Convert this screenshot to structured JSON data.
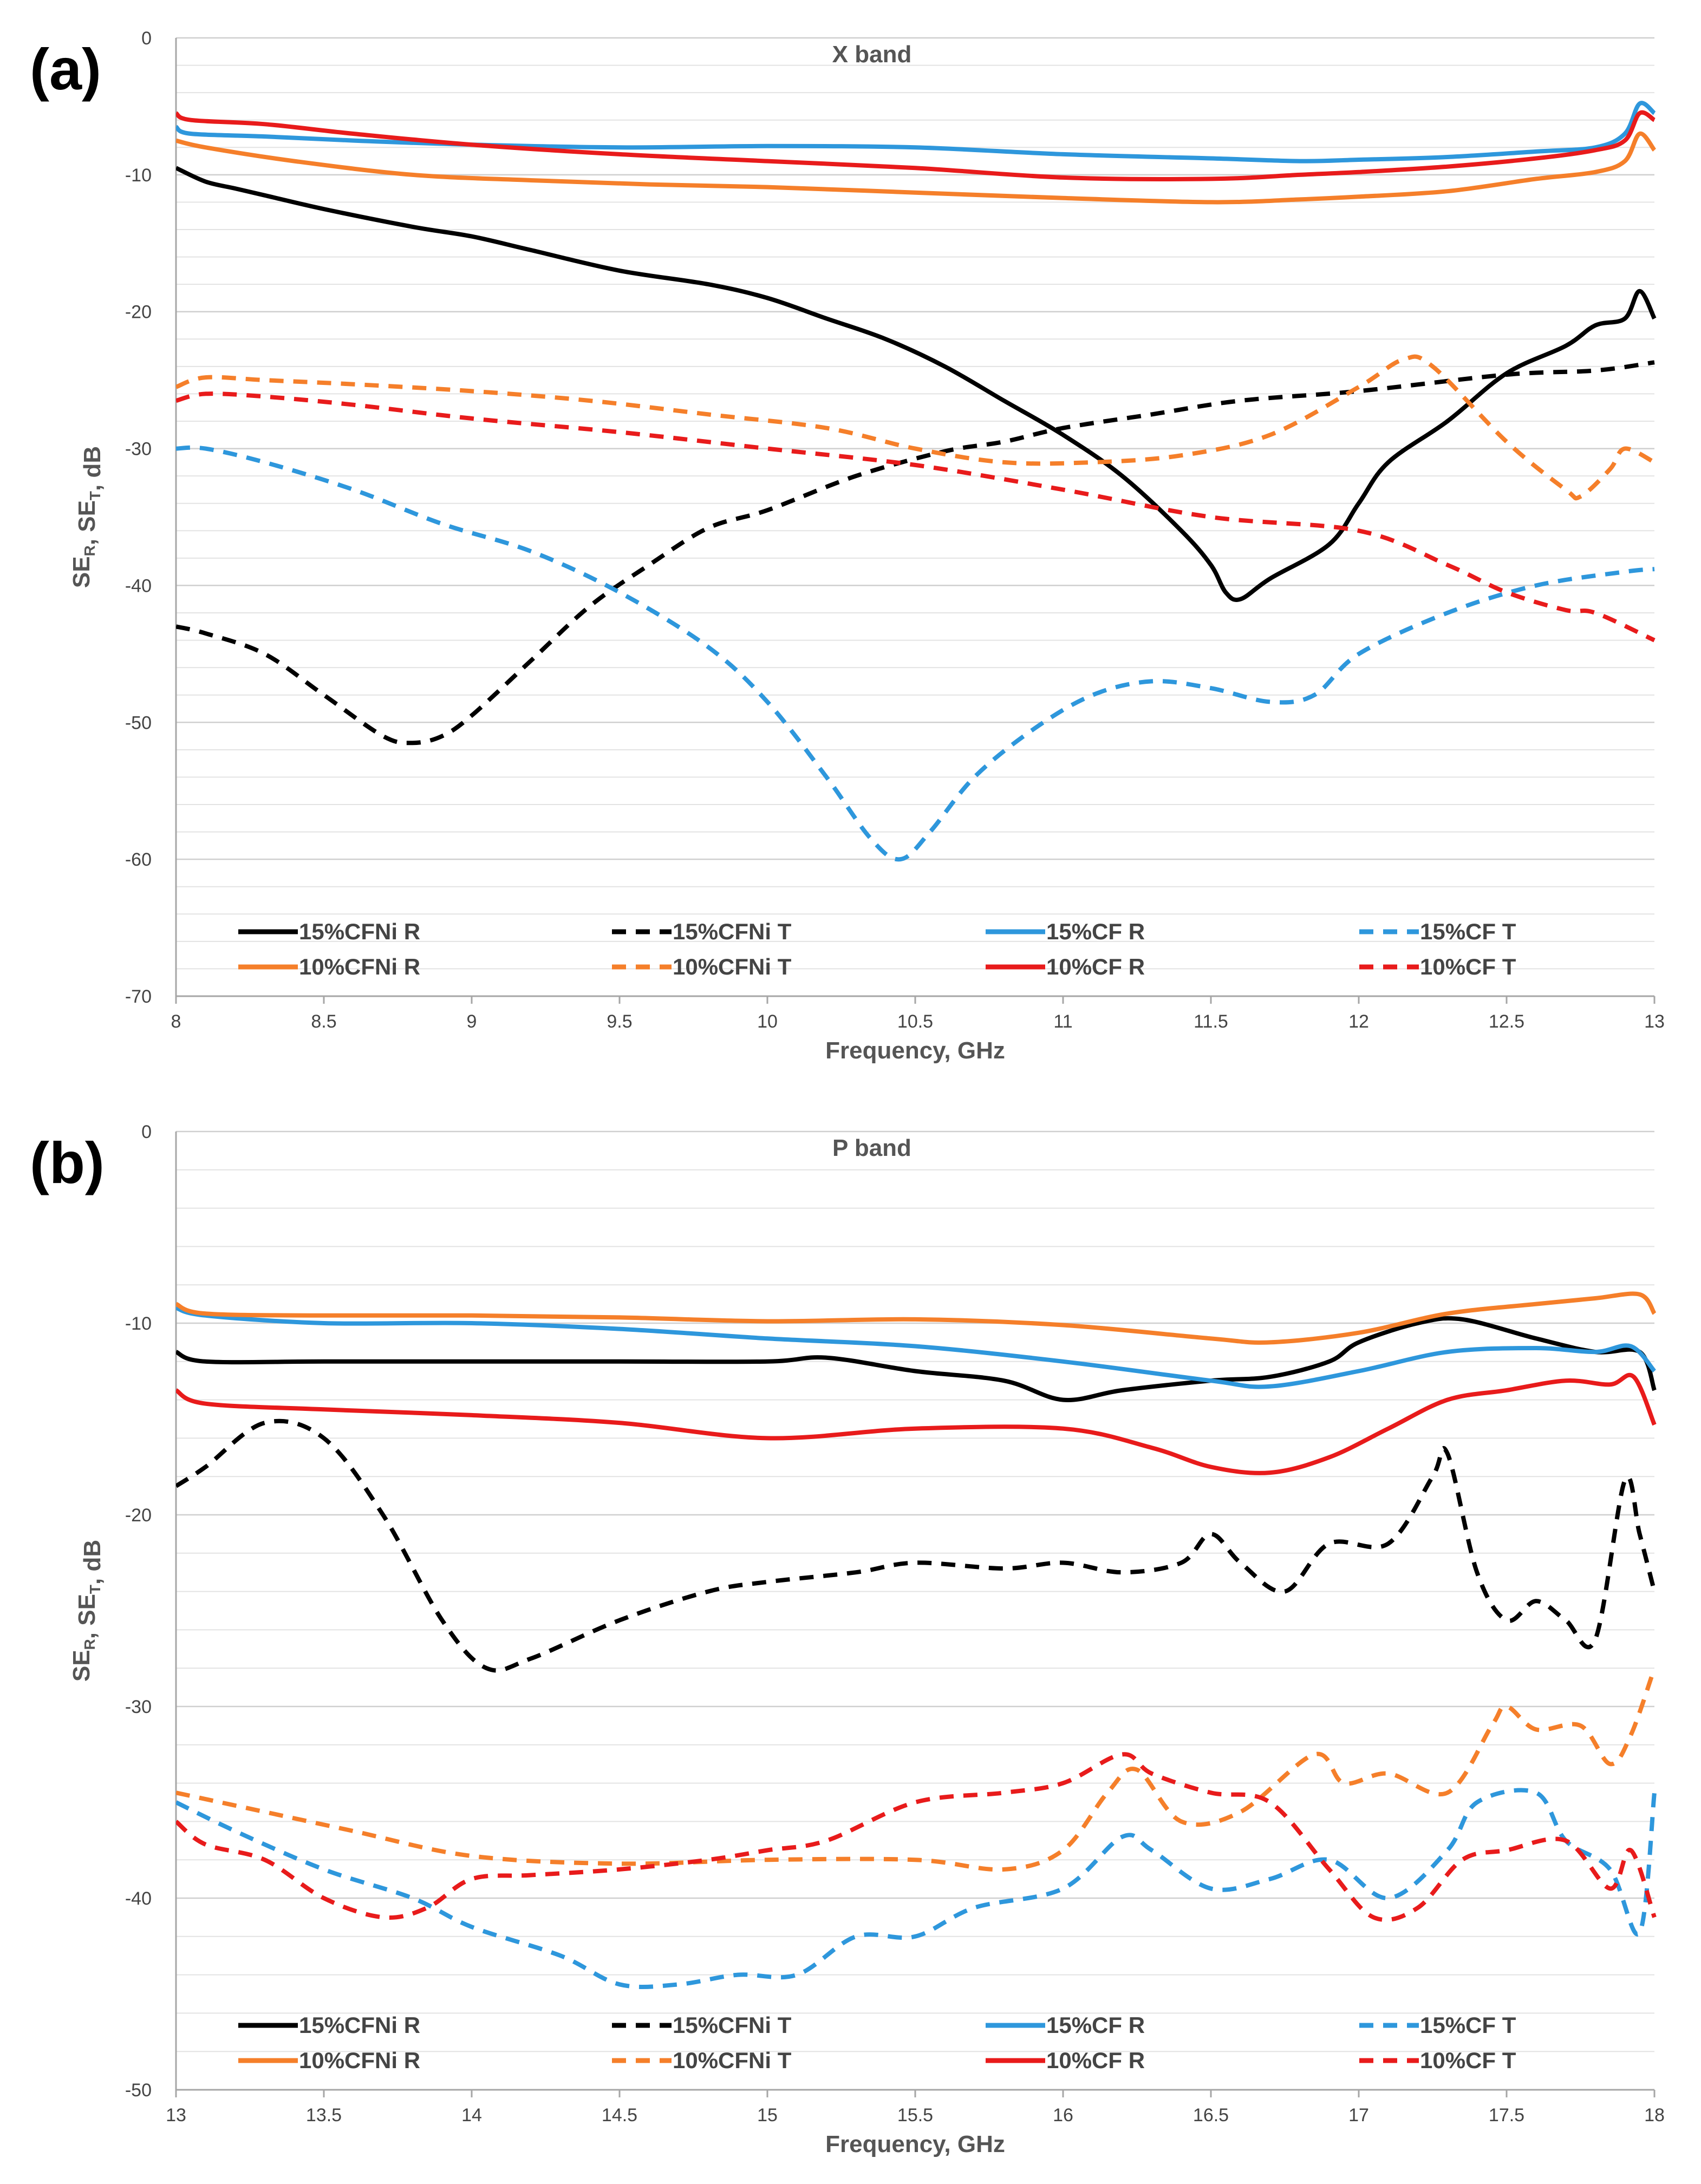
{
  "chart_data": [
    {
      "type": "line",
      "panel": "(a)",
      "title": "X band",
      "xlabel": "Frequency, GHz",
      "ylabel": {
        "base1": "SE",
        "sub1": "R",
        "mid": ", SE",
        "sub2": "T",
        "end": ", dB"
      },
      "xlim": [
        8,
        13
      ],
      "ylim": [
        -70,
        0
      ],
      "xticks": [
        "8",
        "8.5",
        "9",
        "9.5",
        "10",
        "10.5",
        "11",
        "11.5",
        "12",
        "12.5",
        "13"
      ],
      "yticks": [
        "0",
        "-10",
        "-20",
        "-30",
        "-40",
        "-50",
        "-60",
        "-70"
      ],
      "grid": "horizontal",
      "series": [
        {
          "name": "15%CFNi R",
          "color": "#000000",
          "dash": "solid",
          "x": [
            8,
            8.1,
            8.2,
            8.3,
            8.5,
            8.8,
            9,
            9.2,
            9.5,
            9.8,
            10,
            10.2,
            10.4,
            10.6,
            10.8,
            11,
            11.2,
            11.4,
            11.5,
            11.55,
            11.6,
            11.7,
            11.9,
            12,
            12.1,
            12.3,
            12.5,
            12.7,
            12.8,
            12.9,
            12.95,
            13
          ],
          "y": [
            -9.5,
            -10.5,
            -11,
            -11.5,
            -12.5,
            -13.8,
            -14.5,
            -15.5,
            -17,
            -18,
            -19,
            -20.5,
            -22,
            -24,
            -26.5,
            -29,
            -32,
            -36,
            -38.5,
            -40.5,
            -41,
            -39.5,
            -37,
            -34,
            -31,
            -28,
            -24.5,
            -22.5,
            -21,
            -20.5,
            -18.5,
            -20.5
          ]
        },
        {
          "name": "15%CFNi T",
          "color": "#000000",
          "dash": "dashed",
          "x": [
            8,
            8.1,
            8.3,
            8.5,
            8.7,
            8.8,
            8.9,
            9,
            9.2,
            9.4,
            9.6,
            9.8,
            10,
            10.3,
            10.6,
            10.8,
            11,
            11.3,
            11.6,
            12,
            12.5,
            12.8,
            13
          ],
          "y": [
            -43,
            -43.5,
            -45,
            -48,
            -51,
            -51.5,
            -51,
            -49.5,
            -45.5,
            -41.5,
            -38.5,
            -35.8,
            -34.5,
            -32,
            -30.2,
            -29.5,
            -28.5,
            -27.5,
            -26.5,
            -25.8,
            -24.6,
            -24.3,
            -23.7
          ]
        },
        {
          "name": "15%CF R",
          "color": "#2e97dc",
          "dash": "solid",
          "x": [
            8,
            8.05,
            8.3,
            8.6,
            9,
            9.5,
            10,
            10.5,
            11,
            11.5,
            11.8,
            12,
            12.3,
            12.6,
            12.8,
            12.9,
            12.95,
            13
          ],
          "y": [
            -6.5,
            -7,
            -7.2,
            -7.5,
            -7.8,
            -8,
            -7.9,
            -8,
            -8.5,
            -8.8,
            -9,
            -8.9,
            -8.7,
            -8.3,
            -8,
            -7,
            -4.8,
            -5.5
          ]
        },
        {
          "name": "15%CF T",
          "color": "#2e97dc",
          "dash": "dashed",
          "x": [
            8,
            8.1,
            8.3,
            8.6,
            8.9,
            9.2,
            9.5,
            9.8,
            10,
            10.2,
            10.35,
            10.45,
            10.55,
            10.7,
            10.9,
            11.1,
            11.3,
            11.5,
            11.7,
            11.85,
            12,
            12.3,
            12.6,
            12.9,
            13
          ],
          "y": [
            -30,
            -30,
            -31,
            -33,
            -35.5,
            -37.5,
            -40.5,
            -44.5,
            -48.5,
            -54,
            -58.5,
            -60,
            -58,
            -54,
            -50.5,
            -48,
            -47,
            -47.5,
            -48.5,
            -48,
            -45,
            -42,
            -40,
            -39,
            -38.8
          ]
        },
        {
          "name": "10%CFNi R",
          "color": "#f57f2a",
          "dash": "solid",
          "x": [
            8,
            8.1,
            8.4,
            8.8,
            9.2,
            9.6,
            10,
            10.5,
            11,
            11.5,
            11.8,
            12,
            12.3,
            12.6,
            12.8,
            12.9,
            12.95,
            13
          ],
          "y": [
            -7.5,
            -8,
            -9,
            -10,
            -10.4,
            -10.7,
            -10.9,
            -11.3,
            -11.7,
            -12,
            -11.8,
            -11.6,
            -11.2,
            -10.3,
            -9.8,
            -9,
            -7,
            -8.2
          ]
        },
        {
          "name": "10%CFNi T",
          "color": "#f57f2a",
          "dash": "dashed",
          "x": [
            8,
            8.1,
            8.3,
            8.6,
            9,
            9.4,
            9.8,
            10.2,
            10.5,
            10.8,
            11.1,
            11.4,
            11.7,
            12,
            12.15,
            12.25,
            12.5,
            12.7,
            12.75,
            12.85,
            12.9,
            13
          ],
          "y": [
            -25.5,
            -24.8,
            -25,
            -25.3,
            -25.8,
            -26.5,
            -27.5,
            -28.5,
            -30,
            -31,
            -31,
            -30.5,
            -29,
            -25.5,
            -23.5,
            -24,
            -29.5,
            -33,
            -33.5,
            -31.5,
            -30,
            -31
          ]
        },
        {
          "name": "10%CF R",
          "color": "#e81b1b",
          "dash": "solid",
          "x": [
            8,
            8.05,
            8.3,
            8.6,
            9,
            9.5,
            10,
            10.5,
            11,
            11.5,
            11.8,
            12,
            12.3,
            12.6,
            12.8,
            12.9,
            12.95,
            13
          ],
          "y": [
            -5.5,
            -6,
            -6.3,
            -7,
            -7.8,
            -8.5,
            -9,
            -9.5,
            -10.2,
            -10.3,
            -10,
            -9.8,
            -9.4,
            -8.8,
            -8.2,
            -7.5,
            -5.5,
            -6
          ]
        },
        {
          "name": "10%CF T",
          "color": "#e81b1b",
          "dash": "dashed",
          "x": [
            8,
            8.1,
            8.3,
            8.6,
            9,
            9.5,
            10,
            10.5,
            11,
            11.5,
            12,
            12.3,
            12.5,
            12.7,
            12.8,
            13
          ],
          "y": [
            -26.5,
            -26,
            -26.2,
            -26.8,
            -27.8,
            -28.8,
            -30,
            -31.2,
            -33,
            -35,
            -36,
            -38.5,
            -40.5,
            -41.8,
            -42,
            -44
          ]
        }
      ],
      "legend": [
        "15%CFNi R",
        "15%CFNi T",
        "15%CF R",
        "15%CF T",
        "10%CFNi R",
        "10%CFNi T",
        "10%CF R",
        "10%CF T"
      ]
    },
    {
      "type": "line",
      "panel": "(b)",
      "title": "P band",
      "xlabel": "Frequency, GHz",
      "ylabel": {
        "base1": "SE",
        "sub1": "R",
        "mid": ", SE",
        "sub2": "T",
        "end": ", dB"
      },
      "xlim": [
        13,
        18
      ],
      "ylim": [
        -50,
        0
      ],
      "xticks": [
        "13",
        "13.5",
        "14",
        "14.5",
        "15",
        "15.5",
        "16",
        "16.5",
        "17",
        "17.5",
        "18"
      ],
      "yticks": [
        "0",
        "-10",
        "-20",
        "-30",
        "-40",
        "-50"
      ],
      "grid": "horizontal",
      "series": [
        {
          "name": "15%CFNi R",
          "color": "#000000",
          "dash": "solid",
          "x": [
            13,
            13.1,
            13.5,
            14,
            14.5,
            15,
            15.2,
            15.5,
            15.8,
            16,
            16.2,
            16.5,
            16.7,
            16.9,
            17,
            17.2,
            17.35,
            17.6,
            17.8,
            17.95,
            18
          ],
          "y": [
            -11.5,
            -12,
            -12,
            -12,
            -12,
            -12,
            -11.8,
            -12.5,
            -13,
            -14,
            -13.5,
            -13,
            -12.8,
            -12,
            -11,
            -10,
            -9.8,
            -10.8,
            -11.5,
            -11.5,
            -13.5
          ]
        },
        {
          "name": "15%CFNi T",
          "color": "#000000",
          "dash": "dashed",
          "x": [
            13,
            13.1,
            13.3,
            13.5,
            13.7,
            13.9,
            14.05,
            14.2,
            14.5,
            14.8,
            15,
            15.3,
            15.5,
            15.8,
            16,
            16.2,
            16.4,
            16.5,
            16.6,
            16.75,
            16.9,
            17.1,
            17.25,
            17.3,
            17.4,
            17.5,
            17.6,
            17.7,
            17.8,
            17.9,
            17.95,
            18
          ],
          "y": [
            -18.5,
            -17.5,
            -15.2,
            -16,
            -20,
            -25.5,
            -28,
            -27.5,
            -25.5,
            -24,
            -23.5,
            -23,
            -22.5,
            -22.8,
            -22.5,
            -23,
            -22.5,
            -21,
            -22.5,
            -24,
            -21.5,
            -21.5,
            -18,
            -16.8,
            -23,
            -25.5,
            -24.5,
            -25.5,
            -26.5,
            -18.2,
            -21,
            -24
          ]
        },
        {
          "name": "15%CF R",
          "color": "#2e97dc",
          "dash": "solid",
          "x": [
            13,
            13.1,
            13.5,
            14,
            14.5,
            15,
            15.5,
            16,
            16.5,
            16.7,
            17,
            17.3,
            17.6,
            17.8,
            17.92,
            18
          ],
          "y": [
            -9.2,
            -9.6,
            -10,
            -10,
            -10.3,
            -10.8,
            -11.2,
            -12,
            -13,
            -13.3,
            -12.5,
            -11.5,
            -11.3,
            -11.5,
            -11.2,
            -12.5
          ]
        },
        {
          "name": "15%CF T",
          "color": "#2e97dc",
          "dash": "dashed",
          "x": [
            13,
            13.2,
            13.5,
            13.8,
            14,
            14.3,
            14.5,
            14.7,
            14.9,
            15.1,
            15.3,
            15.5,
            15.7,
            16,
            16.2,
            16.3,
            16.5,
            16.7,
            16.9,
            17.1,
            17.3,
            17.4,
            17.6,
            17.7,
            17.85,
            17.95,
            18
          ],
          "y": [
            -35,
            -36.5,
            -38.5,
            -40,
            -41.5,
            -43,
            -44.5,
            -44.5,
            -44,
            -44,
            -42,
            -42,
            -40.5,
            -39.5,
            -36.8,
            -37.5,
            -39.5,
            -39,
            -38,
            -40,
            -37.5,
            -35,
            -34.5,
            -37,
            -38.5,
            -41.8,
            -34.5
          ]
        },
        {
          "name": "10%CFNi R",
          "color": "#f57f2a",
          "dash": "solid",
          "x": [
            13,
            13.1,
            13.5,
            14,
            14.5,
            15,
            15.5,
            16,
            16.5,
            16.7,
            17,
            17.3,
            17.6,
            17.8,
            17.95,
            18
          ],
          "y": [
            -9,
            -9.5,
            -9.6,
            -9.6,
            -9.7,
            -9.9,
            -9.8,
            -10.1,
            -10.8,
            -11,
            -10.5,
            -9.5,
            -9,
            -8.7,
            -8.5,
            -9.5
          ]
        },
        {
          "name": "10%CFNi T",
          "color": "#f57f2a",
          "dash": "dashed",
          "x": [
            13,
            13.3,
            13.6,
            14,
            14.5,
            15,
            15.5,
            15.8,
            16,
            16.15,
            16.25,
            16.4,
            16.6,
            16.85,
            16.95,
            17.1,
            17.3,
            17.45,
            17.5,
            17.6,
            17.75,
            17.85,
            17.92,
            18
          ],
          "y": [
            -34.5,
            -35.5,
            -36.5,
            -37.8,
            -38.2,
            -38,
            -38,
            -38.5,
            -37.5,
            -34.5,
            -33.3,
            -36,
            -35.5,
            -32.5,
            -34,
            -33.5,
            -34.5,
            -31,
            -30,
            -31.2,
            -31,
            -33,
            -31.5,
            -28
          ]
        },
        {
          "name": "10%CF R",
          "color": "#e81b1b",
          "dash": "solid",
          "x": [
            13,
            13.1,
            13.5,
            14,
            14.5,
            15,
            15.5,
            16,
            16.3,
            16.5,
            16.7,
            16.9,
            17.1,
            17.3,
            17.5,
            17.7,
            17.85,
            17.93,
            18
          ],
          "y": [
            -13.5,
            -14.2,
            -14.5,
            -14.8,
            -15.2,
            -16,
            -15.5,
            -15.5,
            -16.5,
            -17.5,
            -17.8,
            -17,
            -15.5,
            -14,
            -13.5,
            -13,
            -13.2,
            -12.8,
            -15.3
          ]
        },
        {
          "name": "10%CF T",
          "color": "#e81b1b",
          "dash": "dashed",
          "x": [
            13,
            13.1,
            13.3,
            13.5,
            13.7,
            13.85,
            14,
            14.2,
            14.5,
            14.8,
            15,
            15.2,
            15.5,
            15.8,
            16,
            16.2,
            16.3,
            16.5,
            16.7,
            16.9,
            17.05,
            17.2,
            17.35,
            17.5,
            17.7,
            17.85,
            17.92,
            18
          ],
          "y": [
            -36,
            -37.2,
            -38,
            -40,
            -41,
            -40.5,
            -39,
            -38.8,
            -38.5,
            -38,
            -37.5,
            -37,
            -35,
            -34.5,
            -34,
            -32.5,
            -33.5,
            -34.5,
            -35,
            -38.5,
            -41,
            -40.5,
            -38,
            -37.5,
            -37,
            -39.5,
            -37.5,
            -41
          ]
        }
      ],
      "legend": [
        "15%CFNi R",
        "15%CFNi T",
        "15%CF R",
        "15%CF T",
        "10%CFNi R",
        "10%CFNi T",
        "10%CF R",
        "10%CF T"
      ]
    }
  ]
}
